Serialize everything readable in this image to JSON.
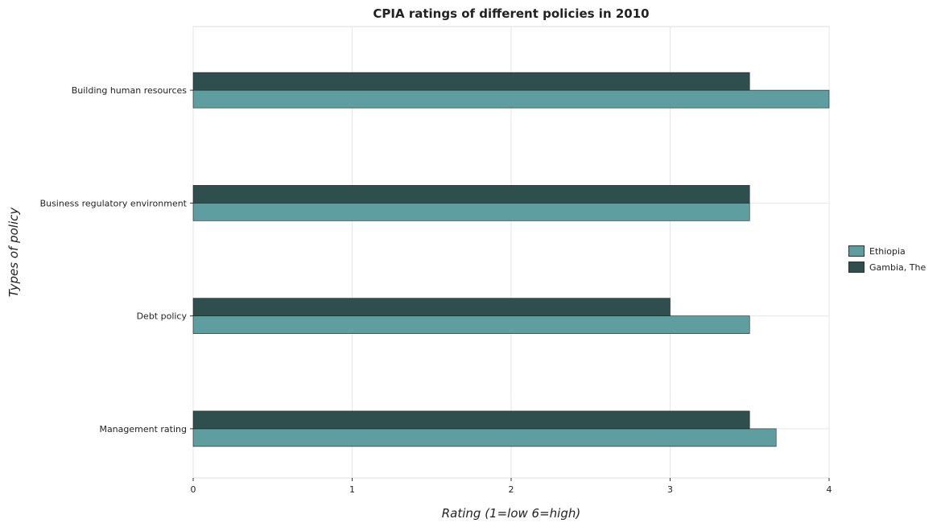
{
  "chart_data": {
    "type": "bar",
    "orientation": "horizontal",
    "title": "CPIA ratings of different policies in 2010",
    "xlabel": "Rating (1=low 6=high)",
    "ylabel": "Types of policy",
    "xlim": [
      0,
      4.0
    ],
    "xticks": [
      0,
      1,
      2,
      3,
      4
    ],
    "grid": true,
    "legend_position": "right",
    "categories": [
      "Building human resources",
      "Business regulatory environment",
      "Debt policy",
      "Management rating"
    ],
    "series": [
      {
        "name": "Ethiopia",
        "color": "#5f9ea0",
        "values": [
          4.0,
          3.5,
          3.5,
          3.667
        ]
      },
      {
        "name": "Gambia, The",
        "color": "#2f4f4f",
        "values": [
          3.5,
          3.5,
          3.0,
          3.5
        ]
      }
    ]
  }
}
